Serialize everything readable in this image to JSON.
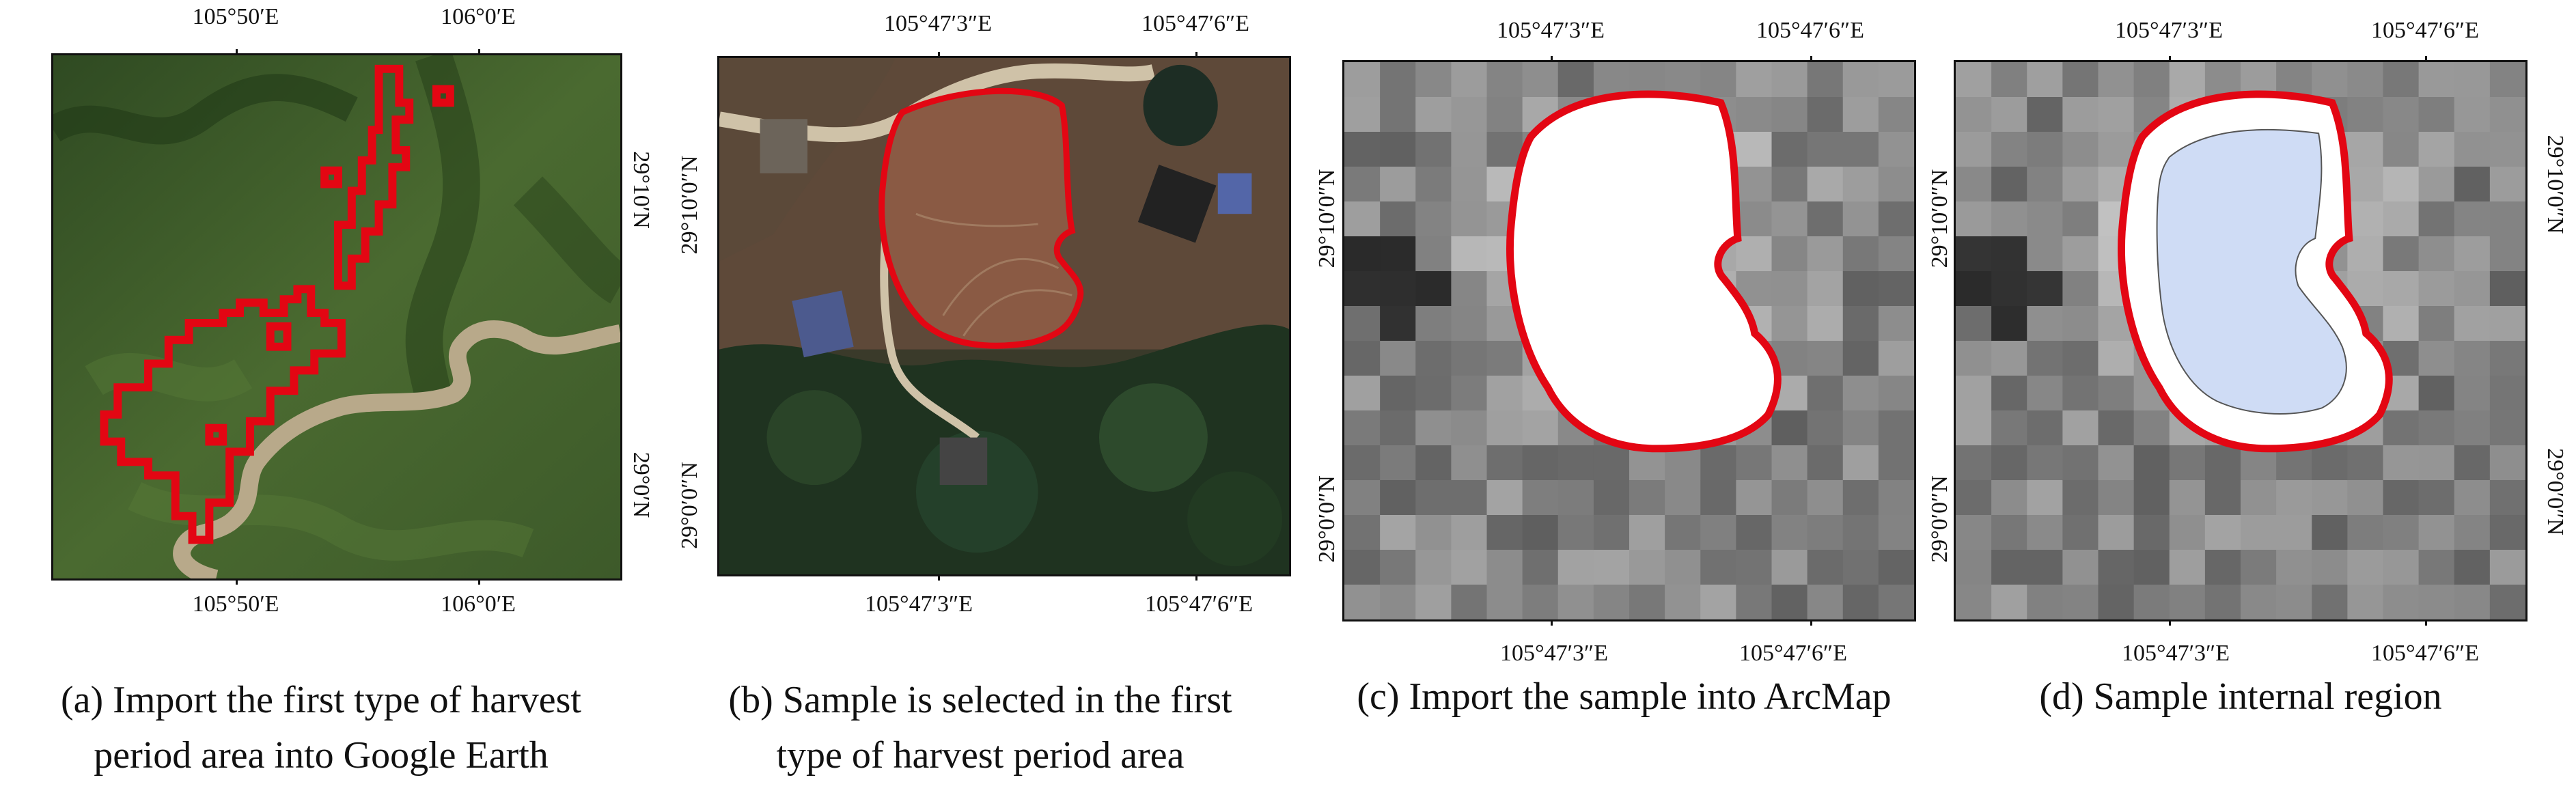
{
  "panels": [
    {
      "id": "a",
      "caption_line1": "(a) Import the first type of harvest",
      "caption_line2": "period area into Google Earth",
      "top_labels": [
        "105°50′E",
        "106°0′E"
      ],
      "bottom_labels": [
        "105°50′E",
        "106°0′E"
      ],
      "right_labels": [
        "29°10′N",
        "29°0′N"
      ],
      "left_labels": []
    },
    {
      "id": "b",
      "caption_line1": "(b) Sample is selected in the first",
      "caption_line2": "type of harvest period area",
      "top_labels": [
        "105°47′3″E",
        "105°47′6″E"
      ],
      "bottom_labels": [
        "105°47′3″E",
        "105°47′6″E"
      ],
      "right_labels": [],
      "left_labels": [
        "29°10′0″N",
        "29°0′0″N"
      ]
    },
    {
      "id": "c",
      "caption_line1": "(c) Import the sample into ArcMap",
      "caption_line2": "",
      "top_labels": [
        "105°47′3″E",
        "105°47′6″E"
      ],
      "bottom_labels": [
        "105°47′3″E",
        "105°47′6″E"
      ],
      "right_labels": [],
      "left_labels": [
        "29°10′0″N",
        "29°0′0″N"
      ]
    },
    {
      "id": "d",
      "caption_line1": "(d) Sample internal region",
      "caption_line2": "",
      "top_labels": [
        "105°47′3″E",
        "105°47′6″E"
      ],
      "bottom_labels": [
        "105°47′3″E",
        "105°47′6″E"
      ],
      "right_labels": [
        "29°10′0″N",
        "29°0′0″N"
      ],
      "left_labels": [
        "29°10′0″N",
        "29°0′0″N"
      ]
    }
  ],
  "colors": {
    "boundary": "#e30613",
    "terrain": "#3f5a2a",
    "river": "#b8a98a",
    "field": "#8a5a44",
    "forest": "#1f3320",
    "inner_region": "#cfdcf5"
  }
}
